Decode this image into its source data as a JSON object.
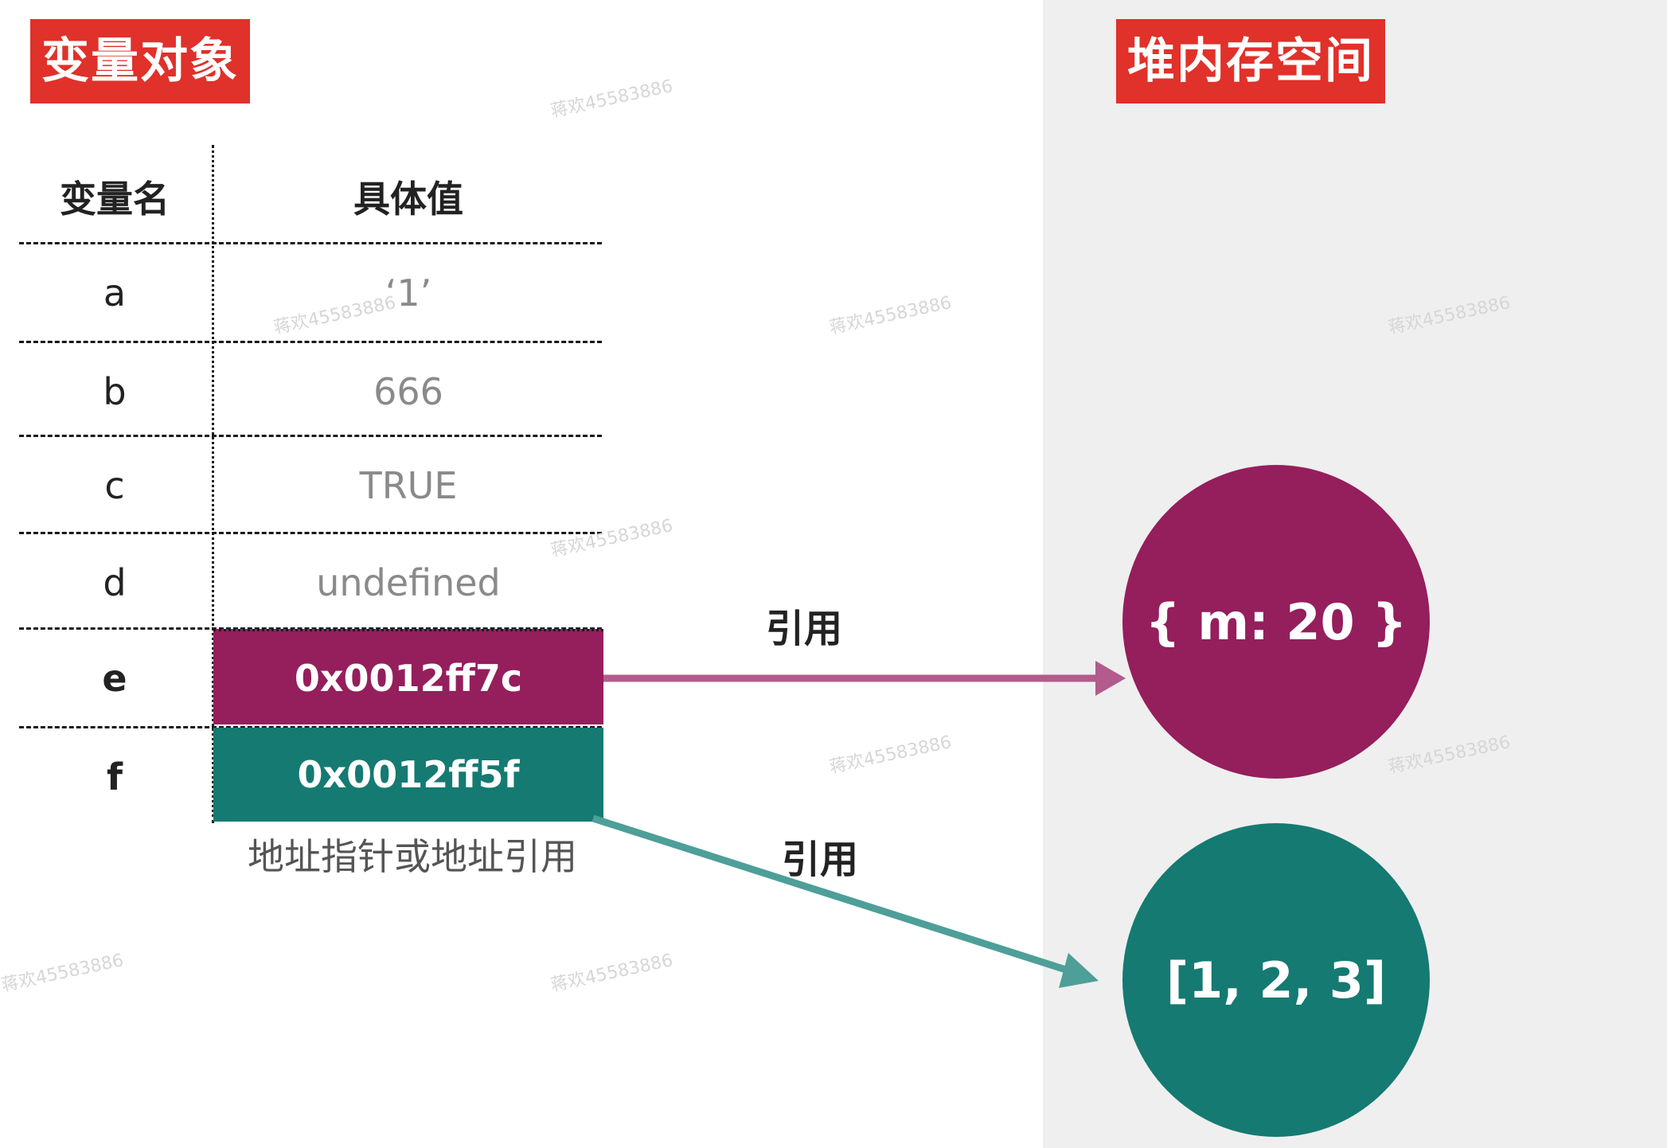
{
  "titles": {
    "variable_object": "变量对象",
    "heap_space": "堆内存空间"
  },
  "table": {
    "headers": {
      "name": "变量名",
      "value": "具体值"
    },
    "rows": [
      {
        "name": "a",
        "value": "‘1’"
      },
      {
        "name": "b",
        "value": "666"
      },
      {
        "name": "c",
        "value": "TRUE"
      },
      {
        "name": "d",
        "value": "undefined"
      },
      {
        "name": "e",
        "value": "0x0012ff7c"
      },
      {
        "name": "f",
        "value": "0x0012ff5f"
      }
    ],
    "caption": "地址指针或地址引用"
  },
  "references": {
    "e_label": "引用",
    "f_label": "引用"
  },
  "heap": {
    "object": "{ m: 20 }",
    "array": "[1, 2, 3]"
  },
  "watermark": "蒋欢45583886",
  "colors": {
    "title_red": "#e0312a",
    "object_magenta": "#951e5c",
    "array_teal": "#157a72",
    "heap_background": "#efefef",
    "arrow_magenta": "#b35b8c",
    "arrow_teal": "#4e9f99"
  }
}
